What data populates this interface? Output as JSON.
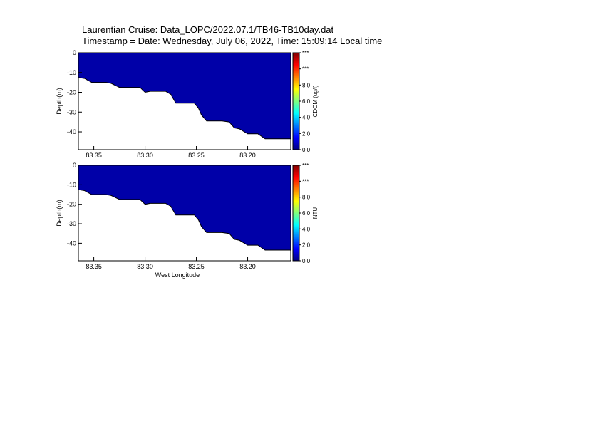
{
  "title_lines": [
    "Laurentian Cruise: Data_LOPC/2022.07.1/TB46-TB10day.dat",
    "Timestamp = Date: Wednesday, July 06, 2022, Time: 15:09:14 Local time"
  ],
  "chart_data": [
    {
      "type": "heatmap",
      "ylabel": "Depth(m)",
      "xlabel": "",
      "xlim": [
        83.365,
        83.158
      ],
      "ylim": [
        -49,
        0
      ],
      "x_ticks": [
        "83.35",
        "83.30",
        "83.25",
        "83.20"
      ],
      "x_tick_values": [
        83.35,
        83.3,
        83.25,
        83.2
      ],
      "y_ticks": [
        "0",
        "-10",
        "-20",
        "-30",
        "-40"
      ],
      "y_tick_values": [
        0,
        -10,
        -20,
        -30,
        -40
      ],
      "fill_color": "#0000a8",
      "colorbar": {
        "label": "CDOM (ug/l)",
        "ticks": [
          "0.0",
          "2.0",
          "4.0",
          "6.0",
          "8.0",
          "***",
          "***"
        ],
        "tick_values": [
          0,
          2,
          4,
          6,
          8,
          10,
          12
        ]
      },
      "bottom_profile": {
        "x": [
          83.365,
          83.359,
          83.352,
          83.345,
          83.338,
          83.333,
          83.325,
          83.318,
          83.312,
          83.305,
          83.3,
          83.295,
          83.288,
          83.28,
          83.275,
          83.27,
          83.265,
          83.258,
          83.252,
          83.248,
          83.245,
          83.24,
          83.232,
          83.225,
          83.218,
          83.213,
          83.208,
          83.2,
          83.196,
          83.19,
          83.183,
          83.176,
          83.174,
          83.171,
          83.165,
          83.158
        ],
        "depth": [
          -12.5,
          -13,
          -15,
          -15,
          -15,
          -15.5,
          -17.5,
          -17.5,
          -17.5,
          -17.5,
          -20,
          -19.5,
          -19.5,
          -19.5,
          -21,
          -25.5,
          -25.5,
          -25.5,
          -25.5,
          -28,
          -31.5,
          -34.5,
          -34.5,
          -34.5,
          -35,
          -38,
          -38.5,
          -41,
          -41,
          -41,
          -43.5,
          -43.5,
          -43.5,
          -43.5,
          -43.5,
          -43.5
        ]
      }
    },
    {
      "type": "heatmap",
      "ylabel": "Depth(m)",
      "xlabel": "West Longitude",
      "xlim": [
        83.365,
        83.158
      ],
      "ylim": [
        -49,
        0
      ],
      "x_ticks": [
        "83.35",
        "83.30",
        "83.25",
        "83.20"
      ],
      "x_tick_values": [
        83.35,
        83.3,
        83.25,
        83.2
      ],
      "y_ticks": [
        "0",
        "-10",
        "-20",
        "-30",
        "-40"
      ],
      "y_tick_values": [
        0,
        -10,
        -20,
        -30,
        -40
      ],
      "fill_color": "#0000a8",
      "colorbar": {
        "label": "NTU",
        "ticks": [
          "0.0",
          "2.0",
          "4.0",
          "6.0",
          "8.0",
          "***",
          "***"
        ],
        "tick_values": [
          0,
          2,
          4,
          6,
          8,
          10,
          12
        ]
      },
      "bottom_profile": {
        "x": [
          83.365,
          83.359,
          83.352,
          83.345,
          83.338,
          83.333,
          83.325,
          83.318,
          83.312,
          83.305,
          83.3,
          83.295,
          83.288,
          83.28,
          83.275,
          83.27,
          83.265,
          83.258,
          83.252,
          83.248,
          83.245,
          83.24,
          83.232,
          83.225,
          83.218,
          83.213,
          83.208,
          83.2,
          83.196,
          83.19,
          83.183,
          83.176,
          83.174,
          83.171,
          83.165,
          83.158
        ],
        "depth": [
          -12.5,
          -13,
          -15,
          -15,
          -15,
          -15.5,
          -17.5,
          -17.5,
          -17.5,
          -17.5,
          -20,
          -19.5,
          -19.5,
          -19.5,
          -21,
          -25.5,
          -25.5,
          -25.5,
          -25.5,
          -28,
          -31.5,
          -34.5,
          -34.5,
          -34.5,
          -35,
          -38,
          -38.5,
          -41,
          -41,
          -41,
          -43.5,
          -43.5,
          -43.5,
          -43.5,
          -43.5,
          -43.5
        ]
      }
    }
  ],
  "colors": {
    "jet": [
      "#00007f",
      "#0000ff",
      "#007fff",
      "#00ffff",
      "#7fff7f",
      "#ffff00",
      "#ff7f00",
      "#ff0000",
      "#7f0000"
    ],
    "background": "#ffffff",
    "axis": "#000000"
  }
}
